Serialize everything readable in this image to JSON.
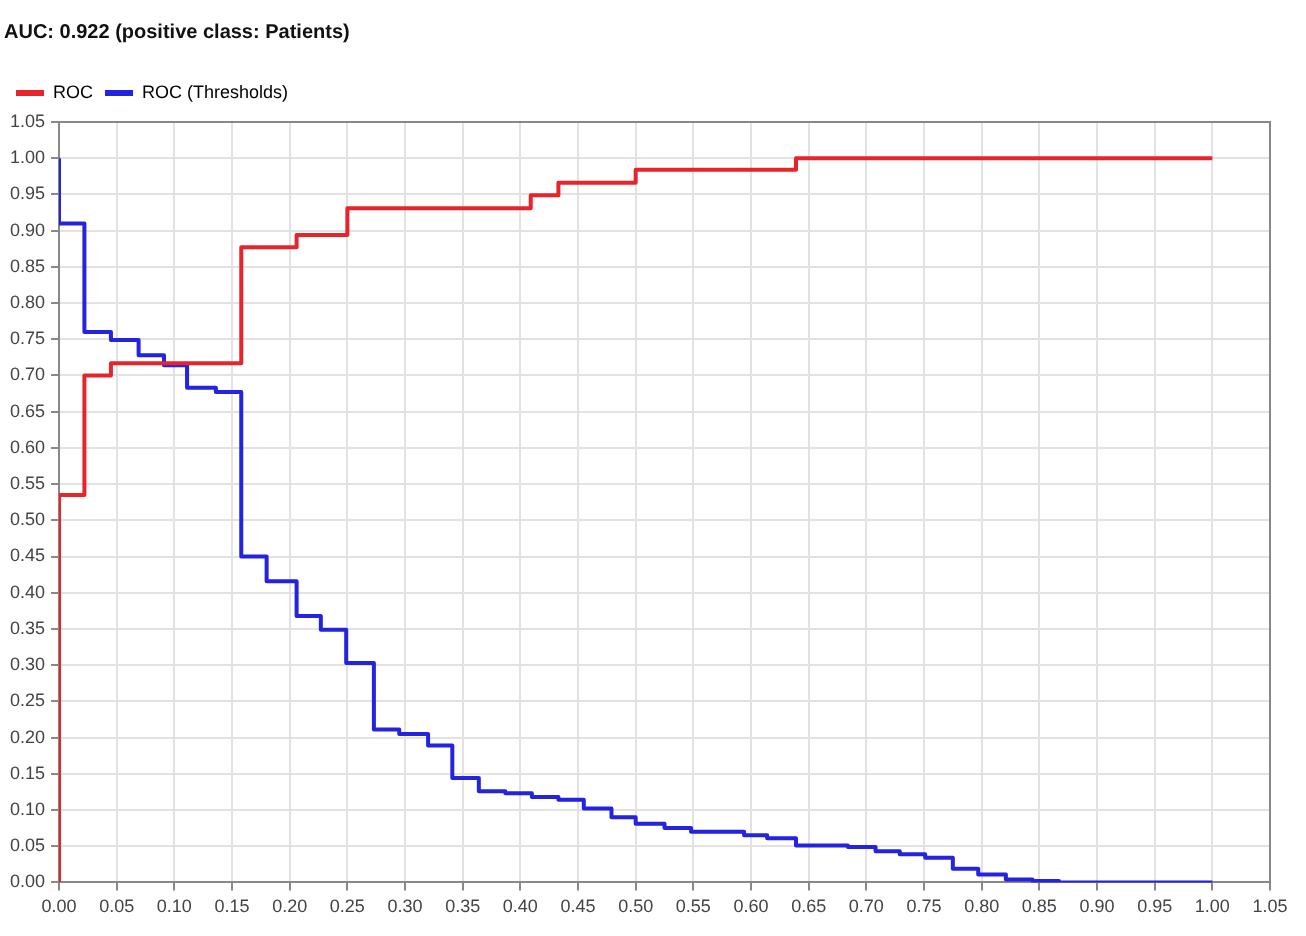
{
  "chart_data": {
    "type": "step",
    "title": "AUC: 0.922 (positive class: Patients)",
    "legend": "top left",
    "grid": true,
    "line_style": "solid",
    "marker": "none",
    "xlim": [
      0,
      1.05
    ],
    "ylim": [
      0,
      1.05
    ],
    "xticks": [
      {
        "value": 0,
        "label": "0.00"
      },
      {
        "value": 0.05,
        "label": "0.05"
      },
      {
        "value": 0.1,
        "label": "0.10"
      },
      {
        "value": 0.15,
        "label": "0.15"
      },
      {
        "value": 0.2,
        "label": "0.20"
      },
      {
        "value": 0.25,
        "label": "0.25"
      },
      {
        "value": 0.3,
        "label": "0.30"
      },
      {
        "value": 0.35,
        "label": "0.35"
      },
      {
        "value": 0.4,
        "label": "0.40"
      },
      {
        "value": 0.45,
        "label": "0.45"
      },
      {
        "value": 0.5,
        "label": "0.50"
      },
      {
        "value": 0.55,
        "label": "0.55"
      },
      {
        "value": 0.6,
        "label": "0.60"
      },
      {
        "value": 0.65,
        "label": "0.65"
      },
      {
        "value": 0.7,
        "label": "0.70"
      },
      {
        "value": 0.75,
        "label": "0.75"
      },
      {
        "value": 0.8,
        "label": "0.80"
      },
      {
        "value": 0.85,
        "label": "0.85"
      },
      {
        "value": 0.9,
        "label": "0.90"
      },
      {
        "value": 0.95,
        "label": "0.95"
      },
      {
        "value": 1,
        "label": "1.00"
      },
      {
        "value": 1.05,
        "label": "1.05"
      }
    ],
    "yticks": [
      {
        "value": 0,
        "label": "0.00"
      },
      {
        "value": 0.05,
        "label": "0.05"
      },
      {
        "value": 0.1,
        "label": "0.10"
      },
      {
        "value": 0.15,
        "label": "0.15"
      },
      {
        "value": 0.2,
        "label": "0.20"
      },
      {
        "value": 0.25,
        "label": "0.25"
      },
      {
        "value": 0.3,
        "label": "0.30"
      },
      {
        "value": 0.35,
        "label": "0.35"
      },
      {
        "value": 0.4,
        "label": "0.40"
      },
      {
        "value": 0.45,
        "label": "0.45"
      },
      {
        "value": 0.5,
        "label": "0.50"
      },
      {
        "value": 0.55,
        "label": "0.55"
      },
      {
        "value": 0.6,
        "label": "0.60"
      },
      {
        "value": 0.65,
        "label": "0.65"
      },
      {
        "value": 0.7,
        "label": "0.70"
      },
      {
        "value": 0.75,
        "label": "0.75"
      },
      {
        "value": 0.8,
        "label": "0.80"
      },
      {
        "value": 0.85,
        "label": "0.85"
      },
      {
        "value": 0.9,
        "label": "0.90"
      },
      {
        "value": 0.95,
        "label": "0.95"
      },
      {
        "value": 1,
        "label": "1.00"
      },
      {
        "value": 1.05,
        "label": "1.05"
      }
    ],
    "series": [
      {
        "name": "ROC",
        "color": "#e8242b",
        "x": [
          0,
          0,
          0.022,
          0.045,
          0.158,
          0.206,
          0.25,
          0.409,
          0.433,
          0.5,
          0.639,
          1.0
        ],
        "values": [
          0,
          0.535,
          0.7,
          0.717,
          0.877,
          0.894,
          0.931,
          0.949,
          0.966,
          0.984,
          1.0,
          1.0
        ]
      },
      {
        "name": "ROC (Thresholds)",
        "color": "#2323e0",
        "x": [
          0,
          0,
          0.022,
          0.045,
          0.069,
          0.091,
          0.111,
          0.136,
          0.158,
          0.18,
          0.206,
          0.227,
          0.249,
          0.273,
          0.295,
          0.32,
          0.341,
          0.364,
          0.387,
          0.41,
          0.433,
          0.455,
          0.479,
          0.5,
          0.525,
          0.548,
          0.594,
          0.614,
          0.639,
          0.684,
          0.708,
          0.729,
          0.751,
          0.775,
          0.797,
          0.821,
          0.844,
          0.867,
          1.0
        ],
        "values": [
          1.0,
          0.91,
          0.76,
          0.749,
          0.728,
          0.714,
          0.683,
          0.677,
          0.45,
          0.416,
          0.368,
          0.349,
          0.303,
          0.211,
          0.205,
          0.189,
          0.144,
          0.126,
          0.123,
          0.118,
          0.114,
          0.102,
          0.09,
          0.081,
          0.075,
          0.07,
          0.065,
          0.061,
          0.051,
          0.049,
          0.043,
          0.039,
          0.034,
          0.019,
          0.011,
          0.004,
          0.002,
          0,
          0
        ]
      }
    ]
  }
}
